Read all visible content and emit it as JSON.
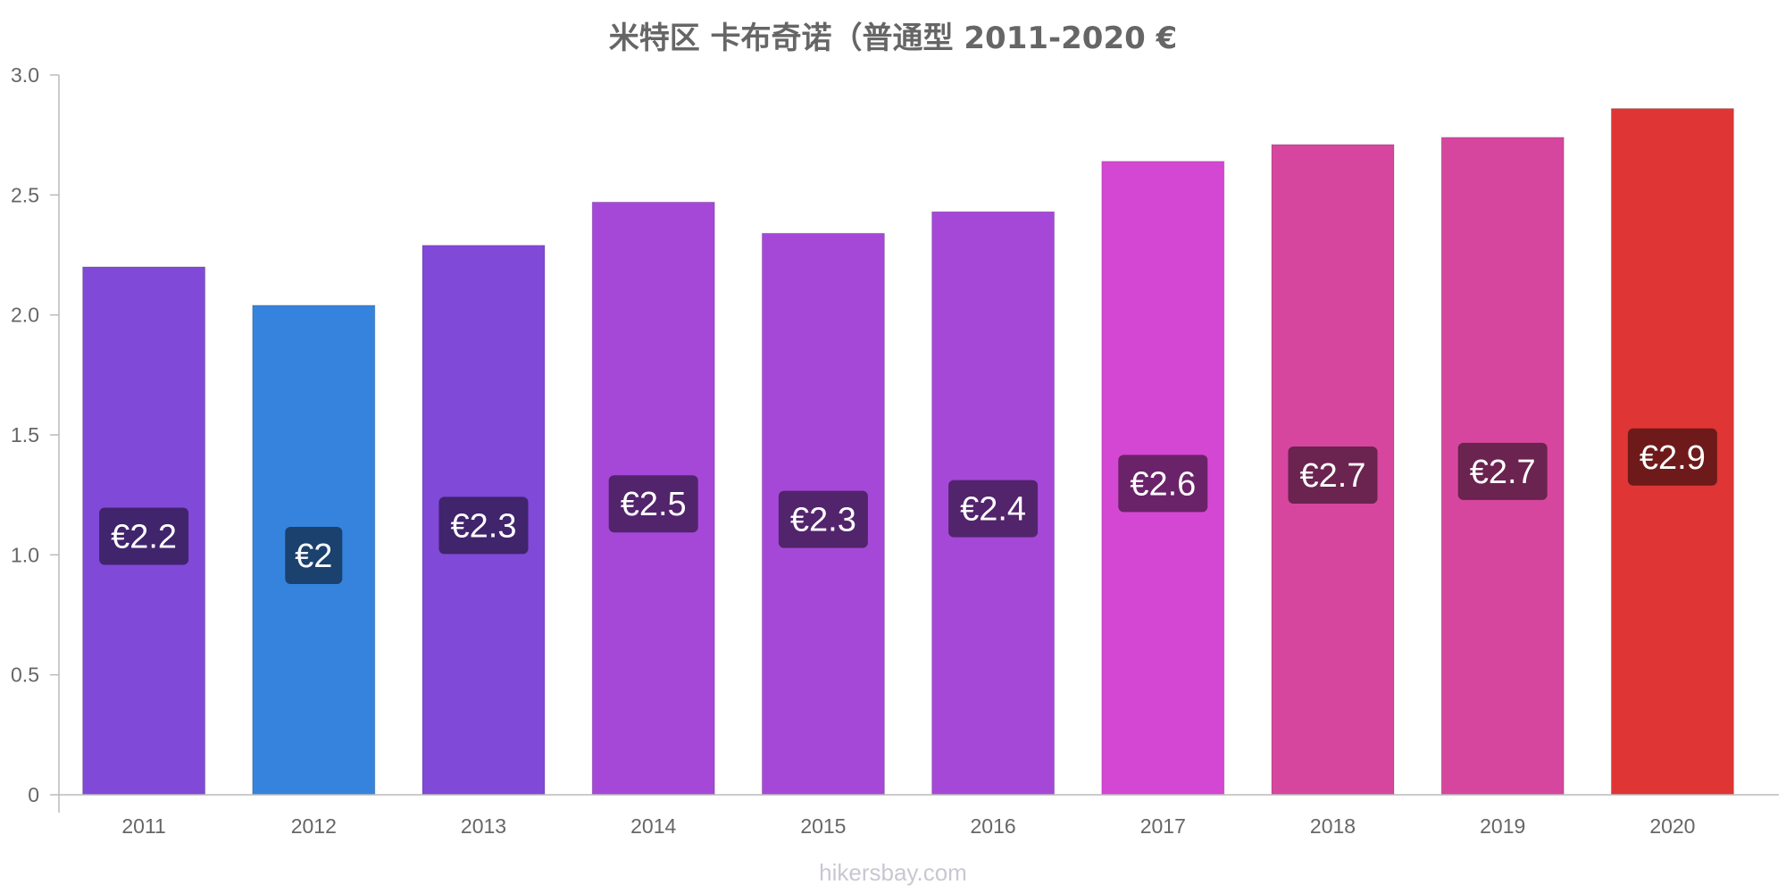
{
  "chart_data": {
    "type": "bar",
    "title": "米特区 卡布奇诺（普通型 2011-2020 €",
    "xlabel": "",
    "ylabel": "",
    "ylim": [
      0,
      3.0
    ],
    "yticks": [
      "0",
      "0.5",
      "1.0",
      "1.5",
      "2.0",
      "2.5",
      "3.0"
    ],
    "grid": false,
    "categories": [
      "2011",
      "2012",
      "2013",
      "2014",
      "2015",
      "2016",
      "2017",
      "2018",
      "2019",
      "2020"
    ],
    "values": [
      2.2,
      2.04,
      2.29,
      2.47,
      2.34,
      2.43,
      2.64,
      2.71,
      2.74,
      2.86
    ],
    "data_labels": [
      "€2.2",
      "€2",
      "€2.3",
      "€2.5",
      "€2.3",
      "€2.4",
      "€2.6",
      "€2.7",
      "€2.7",
      "€2.9"
    ],
    "bar_colors": [
      "#8049d8",
      "#3683dd",
      "#8049d8",
      "#a548d8",
      "#a548d8",
      "#a548d8",
      "#d447d2",
      "#d6469e",
      "#d6469e",
      "#df3535"
    ],
    "label_box_colors": [
      "#40246c",
      "#1b416e",
      "#40246c",
      "#52246c",
      "#52246c",
      "#52246c",
      "#6a2369",
      "#6b234f",
      "#6b234f",
      "#6f1a1a"
    ]
  },
  "watermark": "hikersbay.com"
}
